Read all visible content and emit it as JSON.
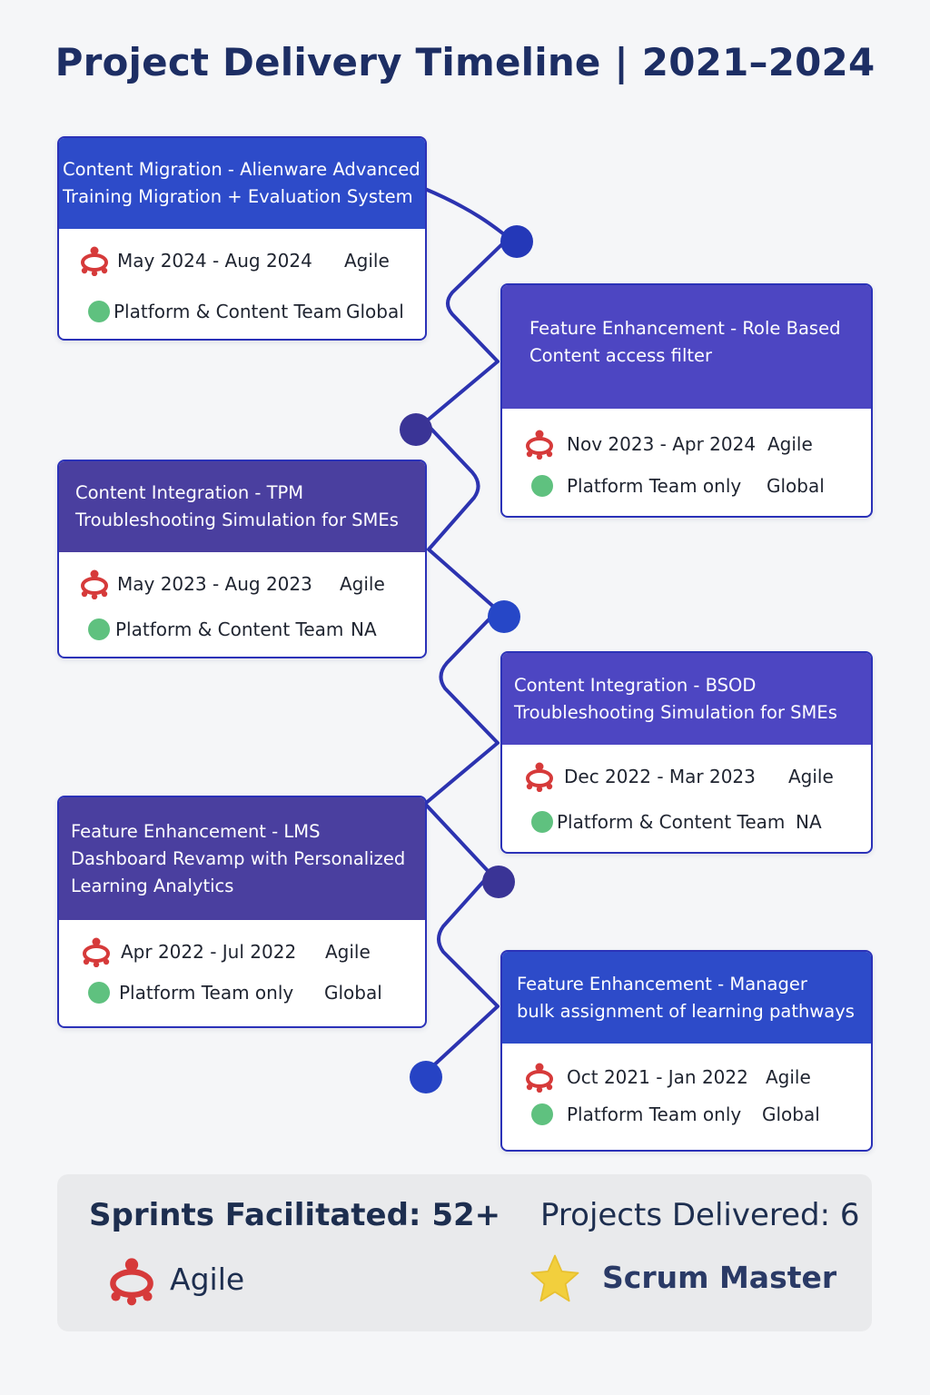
{
  "title": "Project Delivery Timeline | 2021–2024",
  "colors": {
    "line": "#2c33b0",
    "node": "#2438b8",
    "header_blue": "#2d4bc9",
    "header_purple": "#4a3f9f",
    "accent_red": "#d63a3a",
    "status_green": "#5fc17f",
    "star": "#f2cf3d"
  },
  "projects": [
    {
      "title_line1": "Content Migration - Alienware Advanced",
      "title_line2": "Training Migration + Evaluation System",
      "dates": "May 2024 - Aug 2024",
      "method": "Agile",
      "team": "Platform & Content Team",
      "region": "Global"
    },
    {
      "title_line1": "Feature Enhancement - Role Based",
      "title_line2": "Content access filter",
      "dates": "Nov 2023 - Apr 2024",
      "method": "Agile",
      "team": "Platform Team only",
      "region": "Global"
    },
    {
      "title_line1": "Content Integration - TPM",
      "title_line2": "Troubleshooting Simulation for SMEs",
      "dates": "May 2023 - Aug 2023",
      "method": "Agile",
      "team": "Platform & Content Team",
      "region": "NA"
    },
    {
      "title_line1": "Content Integration - BSOD",
      "title_line2": "Troubleshooting Simulation for SMEs",
      "dates": "Dec 2022 - Mar 2023",
      "method": "Agile",
      "team": "Platform & Content Team",
      "region": "NA"
    },
    {
      "title_line1": "Feature Enhancement - LMS",
      "title_line2": "Dashboard Revamp with Personalized",
      "title_line3": "Learning Analytics",
      "dates": "Apr 2022 - Jul 2022",
      "method": "Agile",
      "team": "Platform Team only",
      "region": "Global"
    },
    {
      "title_line1": "Feature Enhancement - Manager",
      "title_line2": "bulk assignment of learning pathways",
      "dates": "Oct 2021 - Jan 2022",
      "method": "Agile",
      "team": "Platform Team only",
      "region": "Global"
    }
  ],
  "summary": {
    "sprints": "Sprints Facilitated: 52+",
    "projects": "Projects Delivered: 6",
    "methodology": "Agile",
    "role": "Scrum Master"
  }
}
